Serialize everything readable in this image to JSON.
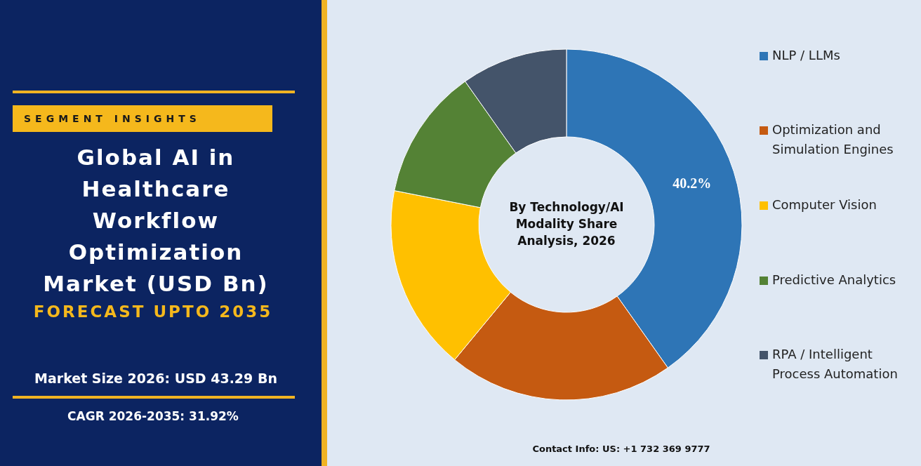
{
  "chart_data": {
    "type": "donut",
    "title": "Global AI in Healthcare Workflow Optimization Market (USD Bn)",
    "subtitle": "FORECAST UPTO 2035",
    "categories": [
      "NLP / LLMs",
      "Optimization and Simulation Engines",
      "Computer Vision",
      "Predictive Analytics",
      "RPA / Intelligent Process Automation"
    ],
    "values": [
      40.2,
      20.8,
      17.1,
      12.1,
      9.8
    ],
    "colors": [
      "#2e75b6",
      "#c55a11",
      "#ffc000",
      "#548235",
      "#44546a"
    ],
    "value_labels": [
      "40.2%",
      null,
      null,
      null,
      null
    ],
    "legend": "right",
    "annotations": [
      "SEGMENT INSIGHTS",
      "By Technology/AI Modality Share Analysis, 2026",
      "Market Size 2026: USD 43.29 Bn",
      "CAGR 2026-2035: 31.92%",
      "Contact Info: US: +1 732 369 9777"
    ]
  }
}
